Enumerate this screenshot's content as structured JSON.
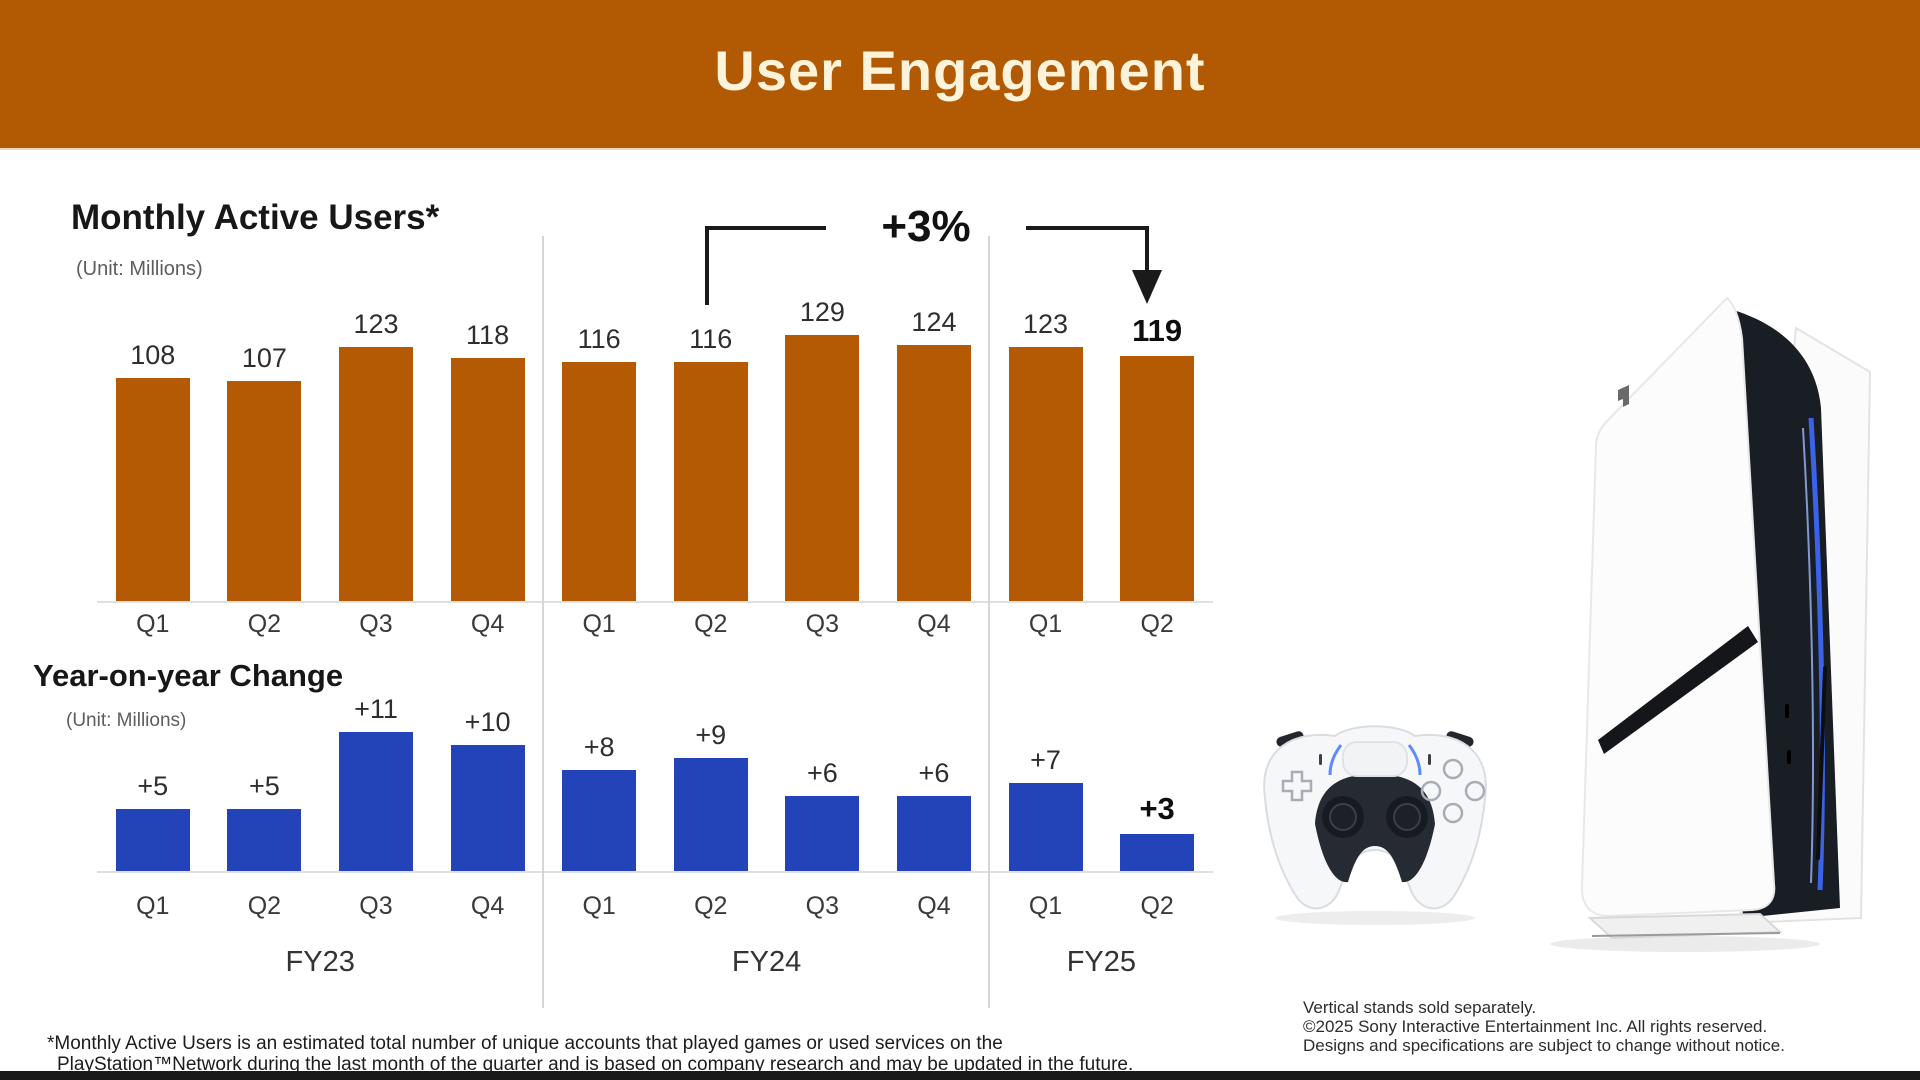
{
  "header": {
    "title": "User Engagement",
    "bg_color": "#b15a03",
    "text_color": "#fdf3da"
  },
  "chart_data": [
    {
      "type": "bar",
      "title": "Monthly Active Users*",
      "subtitle": "(Unit: Millions)",
      "categories": [
        "Q1",
        "Q2",
        "Q3",
        "Q4",
        "Q1",
        "Q2",
        "Q3",
        "Q4",
        "Q1",
        "Q2"
      ],
      "groups": [
        {
          "label": "FY23",
          "count": 4
        },
        {
          "label": "FY24",
          "count": 4
        },
        {
          "label": "FY25",
          "count": 2
        }
      ],
      "values": [
        108,
        107,
        123,
        118,
        116,
        116,
        129,
        124,
        123,
        119
      ],
      "value_labels": [
        "108",
        "107",
        "123",
        "118",
        "116",
        "116",
        "129",
        "124",
        "123",
        "119"
      ],
      "emphasized_indices": [
        9
      ],
      "bar_color": "#b45a04",
      "ylim": [
        0,
        140
      ],
      "grid": false,
      "annotation": {
        "label": "+3%",
        "from": "FY24 Q2",
        "to": "FY25 Q2"
      }
    },
    {
      "type": "bar",
      "title": "Year-on-year Change",
      "subtitle": "(Unit: Millions)",
      "categories": [
        "Q1",
        "Q2",
        "Q3",
        "Q4",
        "Q1",
        "Q2",
        "Q3",
        "Q4",
        "Q1",
        "Q2"
      ],
      "groups": [
        {
          "label": "FY23",
          "count": 4
        },
        {
          "label": "FY24",
          "count": 4
        },
        {
          "label": "FY25",
          "count": 2
        }
      ],
      "values": [
        5,
        5,
        11,
        10,
        8,
        9,
        6,
        6,
        7,
        3
      ],
      "value_labels": [
        "+5",
        "+5",
        "+11",
        "+10",
        "+8",
        "+9",
        "+6",
        "+6",
        "+7",
        "+3"
      ],
      "emphasized_indices": [
        9
      ],
      "bar_color": "#2343b8",
      "ylim": [
        0,
        12
      ],
      "grid": false
    }
  ],
  "footnote": {
    "line1": "*Monthly Active Users is an estimated total number of unique accounts that played games or used services on the",
    "line2": "PlayStation™Network during the last month of the quarter and is based on company research and may be updated in the future."
  },
  "product_note": {
    "line1": "Vertical stands sold separately.",
    "line2": "©2025 Sony Interactive Entertainment Inc. All rights reserved.",
    "line3": "Designs and specifications are subject to change without notice."
  }
}
